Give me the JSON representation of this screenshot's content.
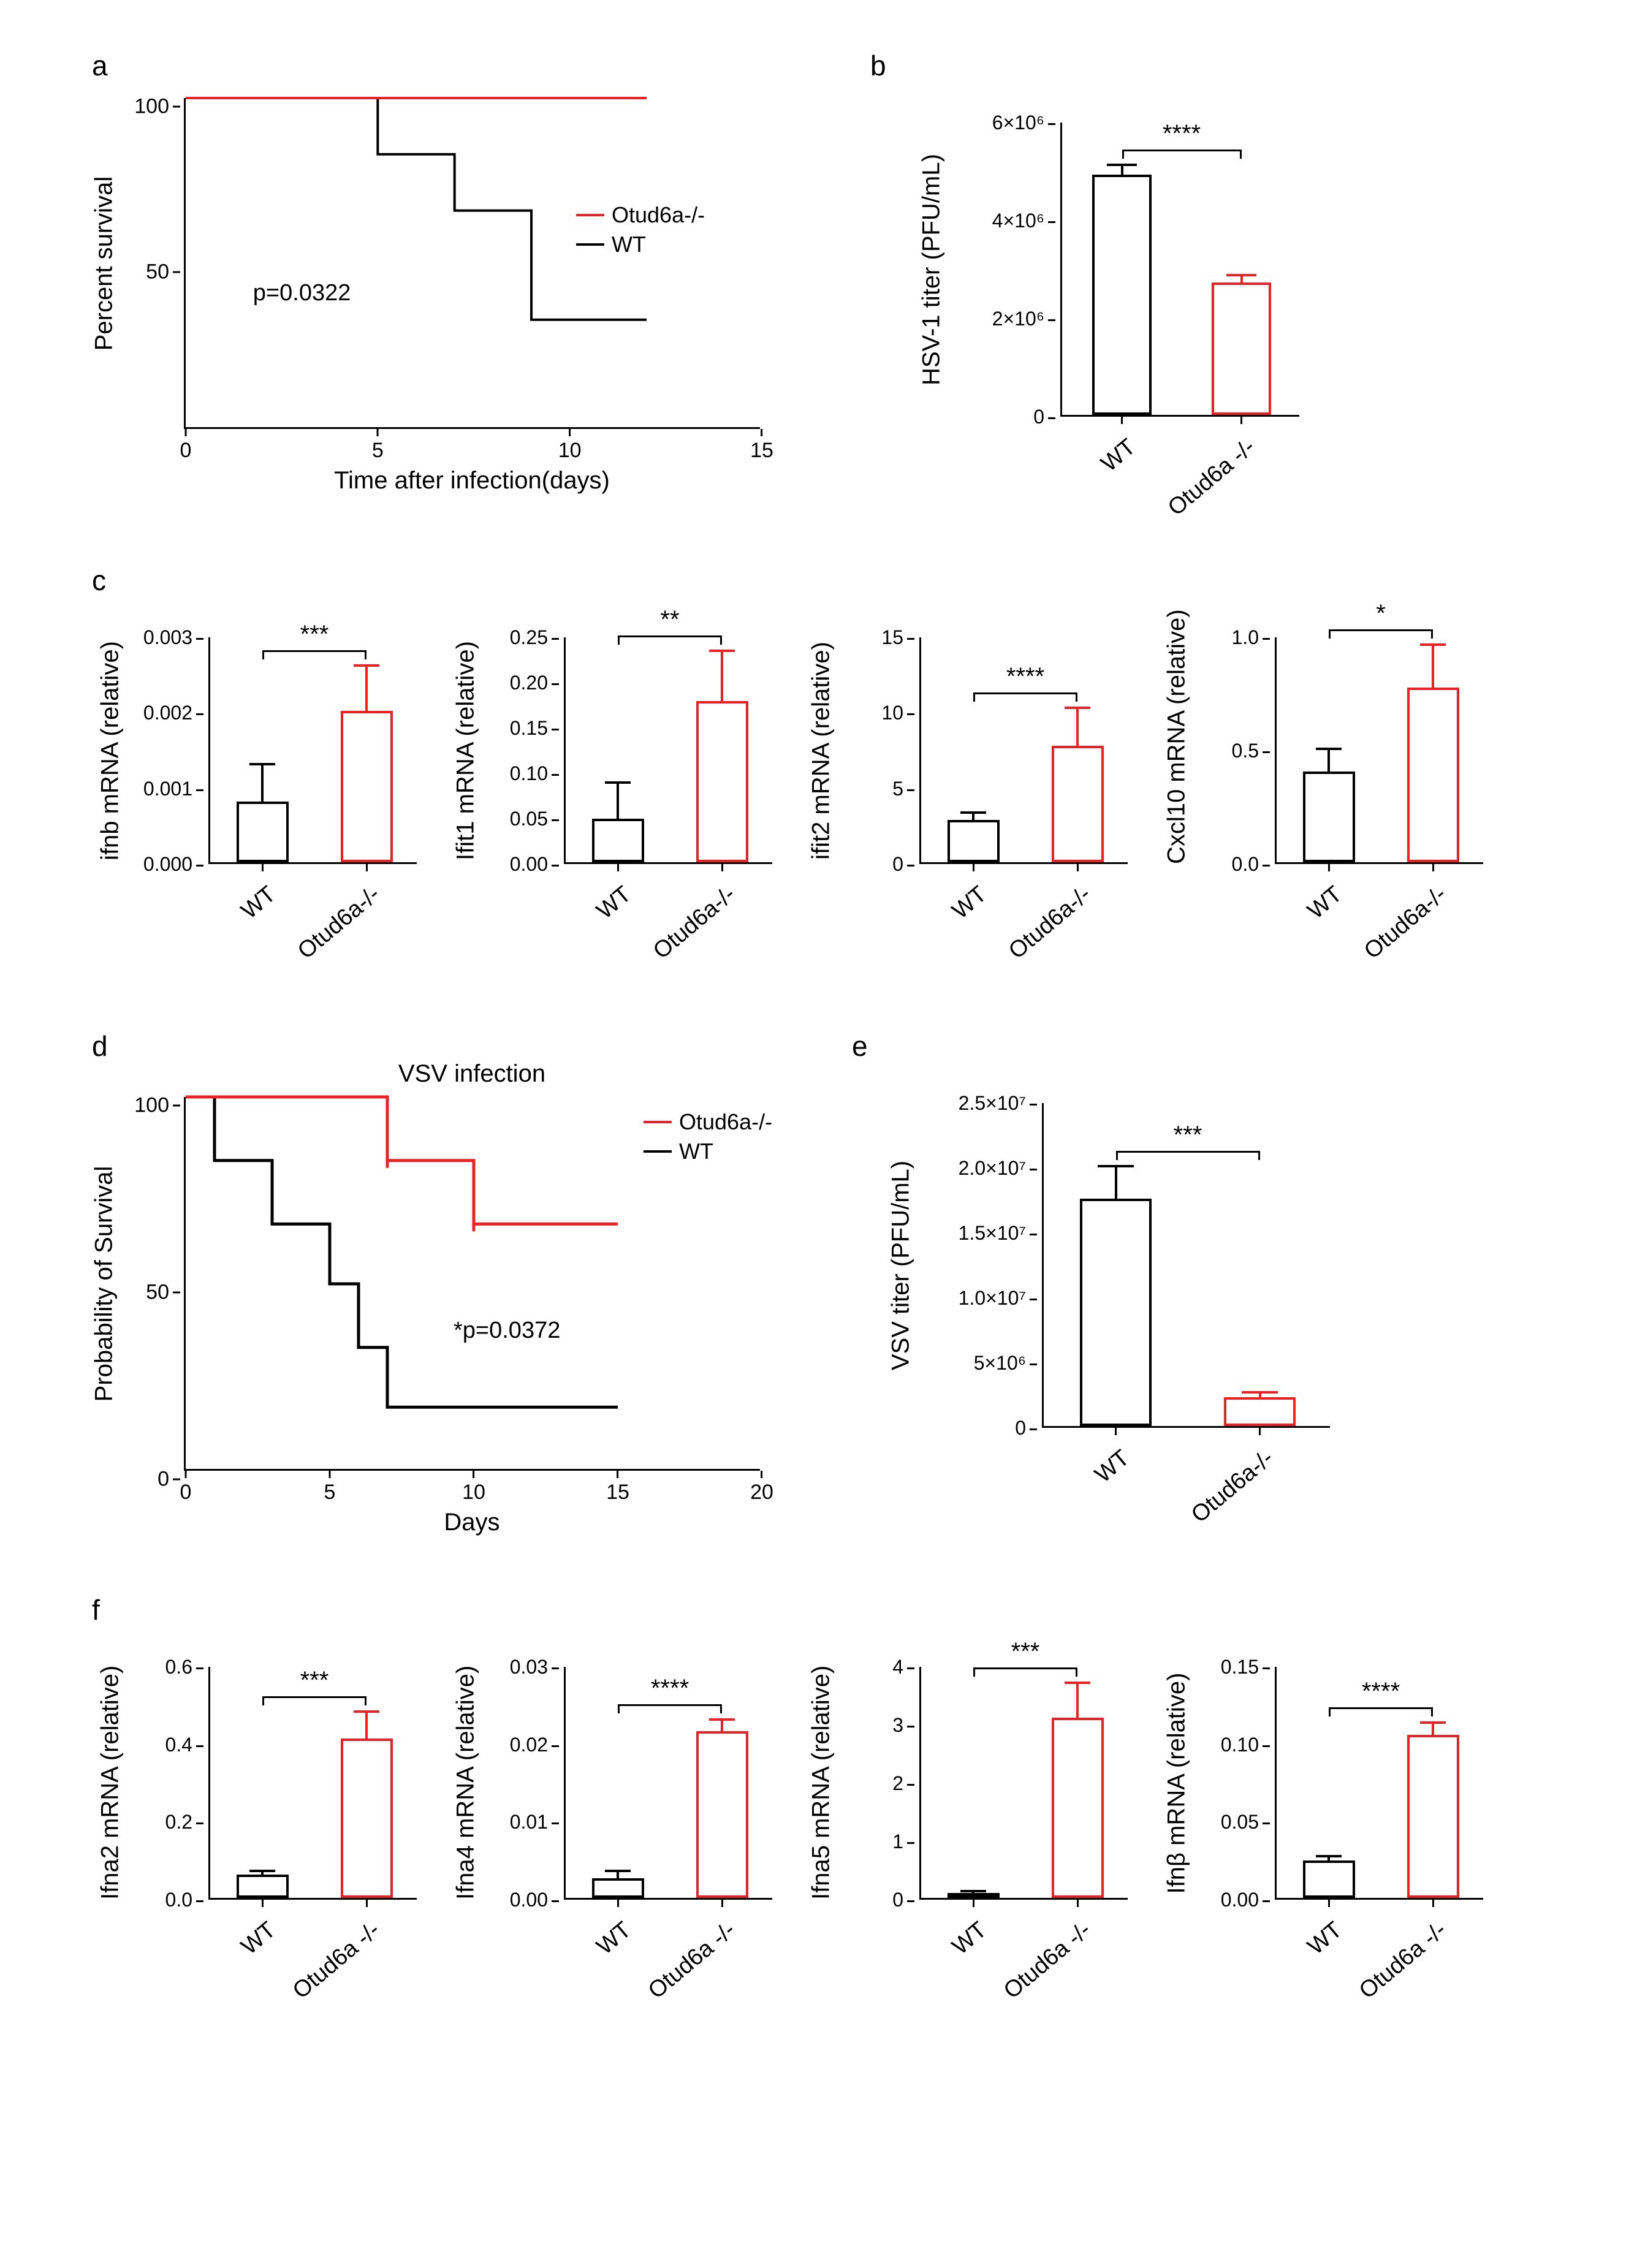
{
  "colors": {
    "wt": "#000000",
    "ko": "#ee2024",
    "axis": "#000000",
    "bg": "#ffffff"
  },
  "font": {
    "family": "Arial",
    "axis_label_size": 40,
    "tick_size": 34,
    "panel_letter_size": 46
  },
  "panel_a": {
    "letter": "a",
    "type": "survival-step",
    "ylabel": "Percent survival",
    "xlabel": "Time after infection(days)",
    "xlim": [
      0,
      15
    ],
    "ylim": [
      0,
      100
    ],
    "xticks": [
      0,
      5,
      10,
      15
    ],
    "yticks": [
      50,
      100
    ],
    "p_text": "p=0.0322",
    "legend": [
      {
        "label": "Otud6a-/-",
        "color": "#ee2024"
      },
      {
        "label": "WT",
        "color": "#000000"
      }
    ],
    "series": {
      "ko": [
        [
          0,
          100
        ],
        [
          12,
          100
        ]
      ],
      "wt": [
        [
          0,
          100
        ],
        [
          5,
          100
        ],
        [
          5,
          83
        ],
        [
          7,
          83
        ],
        [
          7,
          66
        ],
        [
          9,
          66
        ],
        [
          9,
          33
        ],
        [
          12,
          33
        ]
      ]
    },
    "line_width": 4,
    "tick_dir": "out"
  },
  "panel_b": {
    "letter": "b",
    "type": "bar",
    "ylabel": "HSV-1 titer (PFU/mL)",
    "categories": [
      "WT",
      "Otud6a -/-"
    ],
    "values": [
      4900000.0,
      2700000.0
    ],
    "errors": [
      200000.0,
      150000.0
    ],
    "colors": [
      "#000000",
      "#ee2024"
    ],
    "ylim": [
      0,
      6000000.0
    ],
    "yticks": [
      0,
      2000000.0,
      4000000.0,
      6000000.0
    ],
    "ytick_labels": [
      "0",
      "2×10⁶",
      "4×10⁶",
      "6×10⁶"
    ],
    "sig": "****",
    "bar_width": 0.5
  },
  "panel_c": {
    "letter": "c",
    "charts": [
      {
        "ylabel": "ifnb mRNA (relative)",
        "ylim": [
          0,
          0.003
        ],
        "yticks": [
          0,
          0.001,
          0.002,
          0.003
        ],
        "ytick_labels": [
          "0.000",
          "0.001",
          "0.002",
          "0.003"
        ],
        "values": [
          0.0008,
          0.002
        ],
        "errors": [
          0.0005,
          0.0006
        ],
        "sig": "***"
      },
      {
        "ylabel": "Ifit1 mRNA (relative)",
        "ylim": [
          0,
          0.25
        ],
        "yticks": [
          0,
          0.05,
          0.1,
          0.15,
          0.2,
          0.25
        ],
        "ytick_labels": [
          "0.00",
          "0.05",
          "0.10",
          "0.15",
          "0.20",
          "0.25"
        ],
        "values": [
          0.048,
          0.178
        ],
        "errors": [
          0.04,
          0.055
        ],
        "sig": "**"
      },
      {
        "ylabel": "ifit2 mRNA (relative)",
        "ylim": [
          0,
          15
        ],
        "yticks": [
          0,
          5,
          10,
          15
        ],
        "ytick_labels": [
          "0",
          "5",
          "10",
          "15"
        ],
        "values": [
          2.8,
          7.7
        ],
        "errors": [
          0.5,
          2.5
        ],
        "sig": "****"
      },
      {
        "ylabel": "Cxcl10 mRNA (relative)",
        "ylim": [
          0,
          1.0
        ],
        "yticks": [
          0,
          0.5,
          1.0
        ],
        "ytick_labels": [
          "0.0",
          "0.5",
          "1.0"
        ],
        "values": [
          0.4,
          0.77
        ],
        "errors": [
          0.1,
          0.19
        ],
        "sig": "*"
      }
    ],
    "categories": [
      "WT",
      "Otud6a-/-"
    ],
    "colors": [
      "#000000",
      "#ee2024"
    ],
    "bar_width": 0.5
  },
  "panel_d": {
    "letter": "d",
    "type": "survival-step",
    "title": "VSV infection",
    "ylabel": "Probability of Survival",
    "xlabel": "Days",
    "xlim": [
      0,
      20
    ],
    "ylim": [
      0,
      100
    ],
    "xticks": [
      0,
      5,
      10,
      15,
      20
    ],
    "yticks": [
      0,
      50,
      100
    ],
    "p_text": "*p=0.0372",
    "legend": [
      {
        "label": "Otud6a-/-",
        "color": "#ee2024"
      },
      {
        "label": "WT",
        "color": "#000000"
      }
    ],
    "series": {
      "ko": [
        [
          0,
          100
        ],
        [
          7,
          100
        ],
        [
          7,
          83
        ],
        [
          10,
          83
        ],
        [
          10,
          66
        ],
        [
          15,
          66
        ]
      ],
      "wt": [
        [
          0,
          100
        ],
        [
          1,
          100
        ],
        [
          1,
          83
        ],
        [
          3,
          83
        ],
        [
          3,
          66
        ],
        [
          5,
          66
        ],
        [
          5,
          50
        ],
        [
          6,
          50
        ],
        [
          6,
          33
        ],
        [
          7,
          33
        ],
        [
          7,
          17
        ],
        [
          15,
          17
        ]
      ]
    },
    "line_width": 5,
    "censor_marks": {
      "ko": [
        7,
        10
      ],
      "wt": []
    }
  },
  "panel_e": {
    "letter": "e",
    "type": "bar",
    "ylabel": "VSV titer (PFU/mL)",
    "categories": [
      "WT",
      "Otud6a-/-"
    ],
    "values": [
      17500000.0,
      2200000.0
    ],
    "errors": [
      2500000.0,
      400000.0
    ],
    "colors": [
      "#000000",
      "#ee2024"
    ],
    "ylim": [
      0,
      25000000.0
    ],
    "yticks": [
      0,
      5000000.0,
      10000000.0,
      15000000.0,
      20000000.0,
      25000000.0
    ],
    "ytick_labels": [
      "0",
      "5×10⁶",
      "1.0×10⁷",
      "1.5×10⁷",
      "2.0×10⁷",
      "2.5×10⁷"
    ],
    "sig": "***",
    "bar_width": 0.5
  },
  "panel_f": {
    "letter": "f",
    "charts": [
      {
        "ylabel": "Ifna2 mRNA (relative)",
        "ylim": [
          0,
          0.6
        ],
        "yticks": [
          0,
          0.2,
          0.4,
          0.6
        ],
        "ytick_labels": [
          "0.0",
          "0.2",
          "0.4",
          "0.6"
        ],
        "values": [
          0.06,
          0.41
        ],
        "errors": [
          0.01,
          0.07
        ],
        "sig": "***"
      },
      {
        "ylabel": "Ifna4 mRNA (relative)",
        "ylim": [
          0,
          0.03
        ],
        "yticks": [
          0,
          0.01,
          0.02,
          0.03
        ],
        "ytick_labels": [
          "0.00",
          "0.01",
          "0.02",
          "0.03"
        ],
        "values": [
          0.0025,
          0.0215
        ],
        "errors": [
          0.001,
          0.0015
        ],
        "sig": "****"
      },
      {
        "ylabel": "Ifna5 mRNA (relative)",
        "ylim": [
          0,
          4
        ],
        "yticks": [
          0,
          1,
          2,
          3,
          4
        ],
        "ytick_labels": [
          "0",
          "1",
          "2",
          "3",
          "4"
        ],
        "values": [
          0.08,
          3.1
        ],
        "errors": [
          0.04,
          0.6
        ],
        "sig": "***"
      },
      {
        "ylabel": "Ifnβ mRNA (relative)",
        "ylim": [
          0,
          0.15
        ],
        "yticks": [
          0,
          0.05,
          0.1,
          0.15
        ],
        "ytick_labels": [
          "0.00",
          "0.05",
          "0.10",
          "0.15"
        ],
        "values": [
          0.024,
          0.105
        ],
        "errors": [
          0.003,
          0.008
        ],
        "sig": "****"
      }
    ],
    "categories": [
      "WT",
      "Otud6a -/-"
    ],
    "colors": [
      "#000000",
      "#ee2024"
    ],
    "bar_width": 0.5
  }
}
